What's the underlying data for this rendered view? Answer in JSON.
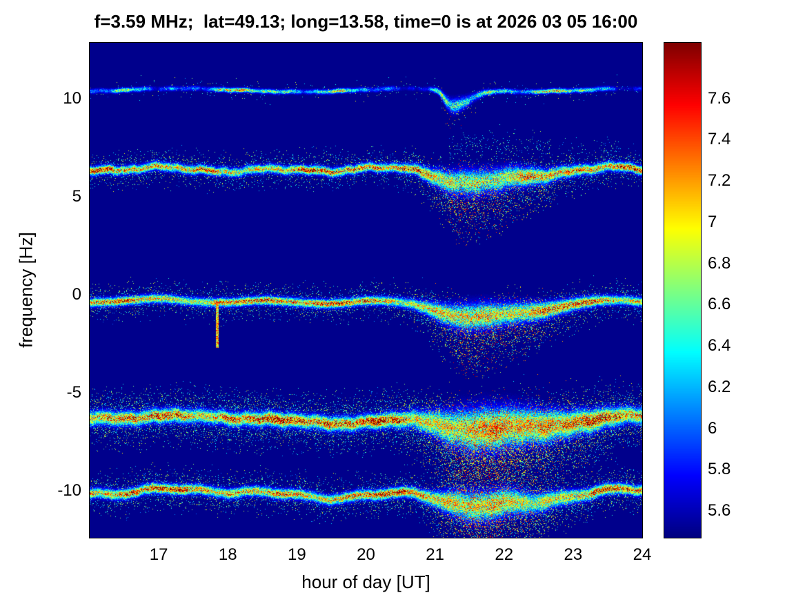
{
  "chart_data": {
    "type": "heatmap",
    "title": "f=3.59 MHz;  lat=49.13; long=13.58, time=0 is at 2026 03 05 16:00",
    "xlabel": "hour of day [UT]",
    "ylabel": "frequency [Hz]",
    "xlim": [
      16,
      24
    ],
    "ylim": [
      -12.4,
      12.85
    ],
    "xticks": [
      17,
      18,
      19,
      20,
      21,
      22,
      23,
      24
    ],
    "xtick_labels": [
      "17",
      "18",
      "19",
      "20",
      "21",
      "22",
      "23",
      "24"
    ],
    "yticks": [
      10,
      5,
      0,
      -5,
      -10
    ],
    "ytick_labels": [
      "10",
      "5",
      "0",
      "-5",
      "-10"
    ],
    "grid": false,
    "colormap": "jet",
    "background_value": 5.5,
    "background_color": "#00008c",
    "colorbar": {
      "range": [
        5.47,
        7.87
      ],
      "ticks": [
        7.6,
        7.4,
        7.2,
        7,
        6.8,
        6.6,
        6.4,
        6.2,
        6,
        5.8,
        5.6
      ],
      "tick_labels": [
        "7.6",
        "7.4",
        "7.2",
        "7",
        "6.8",
        "6.6",
        "6.4",
        "6.2",
        "6",
        "5.8",
        "5.6"
      ],
      "position": "right"
    },
    "traces": [
      {
        "name": "doppler-line-plus10",
        "center": 10.45,
        "sigma": 0.07,
        "peak": 1.7,
        "speckle": 0.08,
        "wiggle": 0.55,
        "seed": 11,
        "intermittent": true,
        "dip": {
          "t": 21.25,
          "width": 0.15,
          "depth": 0.85
        }
      },
      {
        "name": "doppler-line-plus6",
        "center": 6.4,
        "sigma": 0.13,
        "peak": 2.05,
        "speckle": 0.38,
        "wiggle": 0.9,
        "seed": 22,
        "intermittent": false,
        "dip": {
          "t": 21.45,
          "width": 0.5,
          "depth": 0.65
        }
      },
      {
        "name": "doppler-line-zero",
        "center": -0.35,
        "sigma": 0.13,
        "peak": 2.05,
        "speckle": 0.38,
        "wiggle": 0.85,
        "seed": 33,
        "intermittent": false,
        "dip": {
          "t": 21.5,
          "width": 0.55,
          "depth": 0.75
        },
        "spike": {
          "t": 17.85,
          "width": 0.018,
          "depth": 2.3
        }
      },
      {
        "name": "doppler-line-minus6",
        "center": -6.3,
        "sigma": 0.21,
        "peak": 2.25,
        "speckle": 0.55,
        "wiggle": 1.0,
        "seed": 44,
        "intermittent": false,
        "dip": {
          "t": 21.6,
          "width": 0.65,
          "depth": 0.6
        }
      },
      {
        "name": "doppler-line-minus10",
        "center": -10.1,
        "sigma": 0.15,
        "peak": 2.1,
        "speckle": 0.45,
        "wiggle": 0.95,
        "seed": 55,
        "intermittent": false,
        "dip": {
          "t": 21.55,
          "width": 0.5,
          "depth": 0.7
        }
      }
    ],
    "patches": [
      {
        "t0": 21.2,
        "t1": 22.7,
        "yc": 7.5,
        "ys": 0.45,
        "density": 0.05,
        "value": 0.9
      },
      {
        "t0": 22.8,
        "t1": 23.7,
        "yc": 7.4,
        "ys": 0.3,
        "density": 0.04,
        "value": 0.85
      },
      {
        "t0": 19.35,
        "t1": 19.75,
        "yc": 7.2,
        "ys": 0.25,
        "density": 0.035,
        "value": 0.8
      }
    ]
  }
}
